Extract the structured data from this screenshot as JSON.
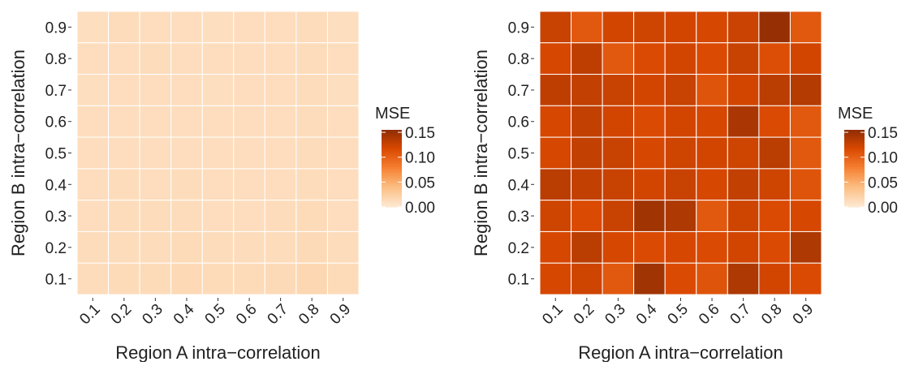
{
  "chart_data": [
    {
      "type": "heatmap",
      "xlabel": "Region A intra−correlation",
      "ylabel": "Region B intra−correlation",
      "x_categories": [
        "0.1",
        "0.2",
        "0.3",
        "0.4",
        "0.5",
        "0.6",
        "0.7",
        "0.8",
        "0.9"
      ],
      "y_categories": [
        "0.1",
        "0.2",
        "0.3",
        "0.4",
        "0.5",
        "0.6",
        "0.7",
        "0.8",
        "0.9"
      ],
      "legend_title": "MSE",
      "legend_ticks": [
        "0.00",
        "0.05",
        "0.10",
        "0.15"
      ],
      "scale_domain": [
        0,
        0.155
      ],
      "values": [
        [
          0.009,
          0.011,
          0.01,
          0.01,
          0.009,
          0.01,
          0.01,
          0.011,
          0.009
        ],
        [
          0.01,
          0.01,
          0.011,
          0.01,
          0.01,
          0.01,
          0.01,
          0.011,
          0.01
        ],
        [
          0.009,
          0.01,
          0.01,
          0.01,
          0.009,
          0.01,
          0.01,
          0.011,
          0.009
        ],
        [
          0.01,
          0.01,
          0.01,
          0.01,
          0.01,
          0.01,
          0.01,
          0.011,
          0.01
        ],
        [
          0.01,
          0.01,
          0.01,
          0.01,
          0.01,
          0.01,
          0.01,
          0.011,
          0.01
        ],
        [
          0.01,
          0.011,
          0.01,
          0.011,
          0.01,
          0.01,
          0.01,
          0.011,
          0.01
        ],
        [
          0.01,
          0.011,
          0.011,
          0.011,
          0.01,
          0.01,
          0.011,
          0.012,
          0.01
        ],
        [
          0.011,
          0.011,
          0.011,
          0.012,
          0.011,
          0.011,
          0.011,
          0.013,
          0.011
        ],
        [
          0.011,
          0.012,
          0.012,
          0.014,
          0.012,
          0.012,
          0.013,
          0.016,
          0.012
        ]
      ]
    },
    {
      "type": "heatmap",
      "xlabel": "Region A intra−correlation",
      "ylabel": "Region B intra−correlation",
      "x_categories": [
        "0.1",
        "0.2",
        "0.3",
        "0.4",
        "0.5",
        "0.6",
        "0.7",
        "0.8",
        "0.9"
      ],
      "y_categories": [
        "0.1",
        "0.2",
        "0.3",
        "0.4",
        "0.5",
        "0.6",
        "0.7",
        "0.8",
        "0.9"
      ],
      "legend_title": "MSE",
      "legend_ticks": [
        "0.00",
        "0.05",
        "0.10",
        "0.15"
      ],
      "scale_domain": [
        0,
        0.155
      ],
      "values": [
        [
          0.125,
          0.105,
          0.12,
          0.122,
          0.12,
          0.118,
          0.124,
          0.15,
          0.105
        ],
        [
          0.118,
          0.13,
          0.105,
          0.115,
          0.12,
          0.115,
          0.125,
          0.112,
          0.12
        ],
        [
          0.13,
          0.128,
          0.125,
          0.12,
          0.125,
          0.108,
          0.12,
          0.132,
          0.135
        ],
        [
          0.118,
          0.128,
          0.12,
          0.115,
          0.12,
          0.118,
          0.14,
          0.115,
          0.105
        ],
        [
          0.118,
          0.128,
          0.125,
          0.118,
          0.122,
          0.12,
          0.122,
          0.132,
          0.105
        ],
        [
          0.132,
          0.128,
          0.125,
          0.12,
          0.125,
          0.118,
          0.128,
          0.122,
          0.108
        ],
        [
          0.122,
          0.115,
          0.125,
          0.145,
          0.138,
          0.105,
          0.122,
          0.115,
          0.118
        ],
        [
          0.118,
          0.132,
          0.118,
          0.115,
          0.118,
          0.115,
          0.12,
          0.115,
          0.138
        ],
        [
          0.118,
          0.122,
          0.105,
          0.145,
          0.115,
          0.108,
          0.138,
          0.12,
          0.115
        ]
      ]
    }
  ]
}
